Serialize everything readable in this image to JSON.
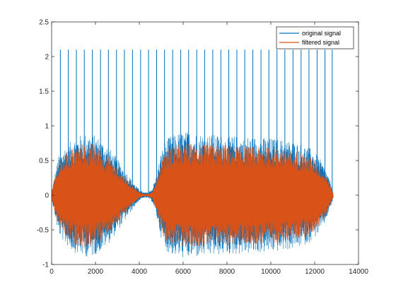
{
  "chart_data": {
    "type": "line",
    "title": "",
    "xlabel": "",
    "ylabel": "",
    "xlim": [
      0,
      14000
    ],
    "ylim": [
      -1,
      2.5
    ],
    "xticks": [
      0,
      2000,
      4000,
      6000,
      8000,
      10000,
      12000,
      14000
    ],
    "xtick_labels": [
      "0",
      "2000",
      "4000",
      "6000",
      "8000",
      "10000",
      "12000",
      "14000"
    ],
    "yticks": [
      -1,
      -0.5,
      0,
      0.5,
      1,
      1.5,
      2,
      2.5
    ],
    "ytick_labels": [
      "-1",
      "-0.5",
      "0",
      "0.5",
      "1",
      "1.5",
      "2",
      "2.5"
    ],
    "grid": false,
    "legend_position": "top-right",
    "sample_count": 12850,
    "series": [
      {
        "name": "original signal",
        "color": "#0072BD",
        "envelope_x": [
          0,
          300,
          600,
          1000,
          1400,
          1800,
          2200,
          2600,
          3000,
          3400,
          3700,
          4000,
          4200,
          4400,
          4600,
          4800,
          5000,
          5200,
          5400,
          5800,
          6200,
          6600,
          7000,
          7400,
          7800,
          8200,
          8600,
          9000,
          9400,
          9800,
          10200,
          10600,
          11000,
          11400,
          11800,
          12200,
          12500,
          12700,
          12850
        ],
        "envelope_amplitude": [
          0.05,
          0.55,
          0.7,
          0.82,
          0.88,
          0.9,
          0.82,
          0.7,
          0.52,
          0.34,
          0.2,
          0.08,
          0.04,
          0.04,
          0.1,
          0.32,
          0.62,
          0.8,
          0.85,
          0.9,
          0.92,
          0.9,
          0.88,
          0.88,
          0.86,
          0.86,
          0.85,
          0.85,
          0.84,
          0.83,
          0.82,
          0.8,
          0.78,
          0.74,
          0.68,
          0.55,
          0.38,
          0.2,
          0.05
        ],
        "impulse_height": 2.1,
        "impulse_x": [
          400,
          760,
          1130,
          1490,
          1860,
          2230,
          2590,
          2960,
          3320,
          3690,
          4060,
          4420,
          4790,
          5150,
          5520,
          5890,
          6250,
          6620,
          6980,
          7350,
          7720,
          8080,
          8450,
          8810,
          9180,
          9550,
          9910,
          10280,
          10640,
          11010,
          11380,
          11740,
          12110,
          12470,
          12800
        ]
      },
      {
        "name": "filtered signal",
        "color": "#D95319",
        "envelope_x": [
          0,
          300,
          600,
          1000,
          1400,
          1800,
          2200,
          2600,
          3000,
          3400,
          3700,
          4000,
          4200,
          4400,
          4600,
          4800,
          5000,
          5200,
          5400,
          5800,
          6200,
          6600,
          7000,
          7400,
          7800,
          8200,
          8600,
          9000,
          9400,
          9800,
          10200,
          10600,
          11000,
          11400,
          11800,
          12200,
          12500,
          12700,
          12850
        ],
        "envelope_amplitude": [
          0.05,
          0.45,
          0.6,
          0.7,
          0.75,
          0.76,
          0.68,
          0.56,
          0.4,
          0.25,
          0.14,
          0.05,
          0.02,
          0.02,
          0.06,
          0.24,
          0.5,
          0.64,
          0.7,
          0.74,
          0.75,
          0.74,
          0.73,
          0.73,
          0.72,
          0.72,
          0.71,
          0.71,
          0.7,
          0.7,
          0.69,
          0.67,
          0.65,
          0.62,
          0.57,
          0.45,
          0.3,
          0.15,
          0.03
        ]
      }
    ]
  }
}
